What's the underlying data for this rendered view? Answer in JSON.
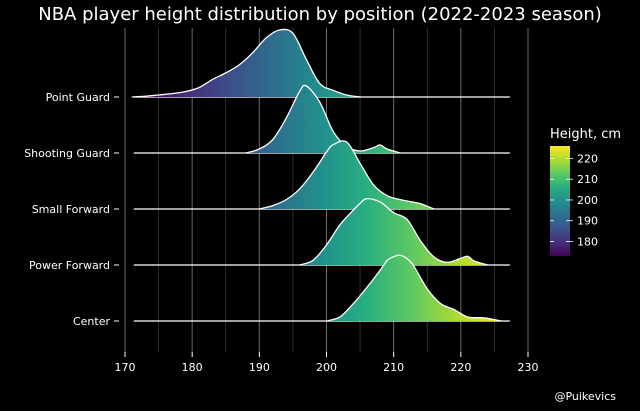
{
  "title": "NBA player height distribution by position (2022-2023 season)",
  "credit": "@Puikevics",
  "chart_data": {
    "type": "ridgeline",
    "title": "NBA player height distribution by position (2022-2023 season)",
    "xlabel": "",
    "ylabel": "",
    "xlim": [
      170,
      230
    ],
    "xticks": [
      170,
      180,
      190,
      200,
      210,
      220,
      230
    ],
    "grid": "vertical",
    "categories": [
      "Point Guard",
      "Shooting Guard",
      "Small Forward",
      "Power Forward",
      "Center"
    ],
    "series": [
      {
        "name": "Point Guard",
        "x": [
          171,
          173,
          175,
          177,
          179,
          181,
          183,
          185,
          187,
          189,
          191,
          193,
          195,
          197,
          199,
          201,
          203,
          205
        ],
        "y": [
          0.0,
          0.01,
          0.03,
          0.05,
          0.08,
          0.14,
          0.26,
          0.36,
          0.48,
          0.66,
          0.88,
          1.0,
          0.95,
          0.56,
          0.2,
          0.1,
          0.03,
          0.0
        ]
      },
      {
        "name": "Shooting Guard",
        "x": [
          188,
          190,
          192,
          194,
          196,
          197,
          199,
          201,
          203,
          205,
          207,
          208,
          209,
          211
        ],
        "y": [
          0.0,
          0.06,
          0.2,
          0.52,
          0.92,
          1.0,
          0.76,
          0.32,
          0.1,
          0.03,
          0.08,
          0.12,
          0.06,
          0.0
        ]
      },
      {
        "name": "Small Forward",
        "x": [
          190,
          192,
          194,
          196,
          198,
          200,
          201,
          203,
          205,
          207,
          209,
          211,
          213,
          214,
          216
        ],
        "y": [
          0.0,
          0.05,
          0.14,
          0.3,
          0.55,
          0.85,
          0.96,
          1.0,
          0.68,
          0.36,
          0.2,
          0.14,
          0.1,
          0.08,
          0.0
        ]
      },
      {
        "name": "Power Forward",
        "x": [
          196,
          198,
          200,
          202,
          204,
          205,
          206,
          208,
          210,
          212,
          214,
          216,
          218,
          220,
          221,
          222,
          224
        ],
        "y": [
          0.0,
          0.07,
          0.3,
          0.6,
          0.82,
          0.92,
          0.99,
          0.94,
          0.78,
          0.68,
          0.36,
          0.12,
          0.04,
          0.1,
          0.13,
          0.06,
          0.0
        ]
      },
      {
        "name": "Center",
        "x": [
          200,
          202,
          204,
          206,
          208,
          209,
          210,
          211,
          212,
          213,
          215,
          217,
          219,
          221,
          223,
          224,
          225,
          226
        ],
        "y": [
          0.0,
          0.06,
          0.26,
          0.5,
          0.76,
          0.9,
          0.96,
          0.98,
          0.93,
          0.82,
          0.48,
          0.26,
          0.17,
          0.06,
          0.05,
          0.04,
          0.02,
          0.0
        ]
      }
    ],
    "colorbar": {
      "title": "Height, cm",
      "range": [
        173,
        226
      ],
      "ticks": [
        180,
        190,
        200,
        210,
        220
      ],
      "colormap": "viridis"
    }
  }
}
